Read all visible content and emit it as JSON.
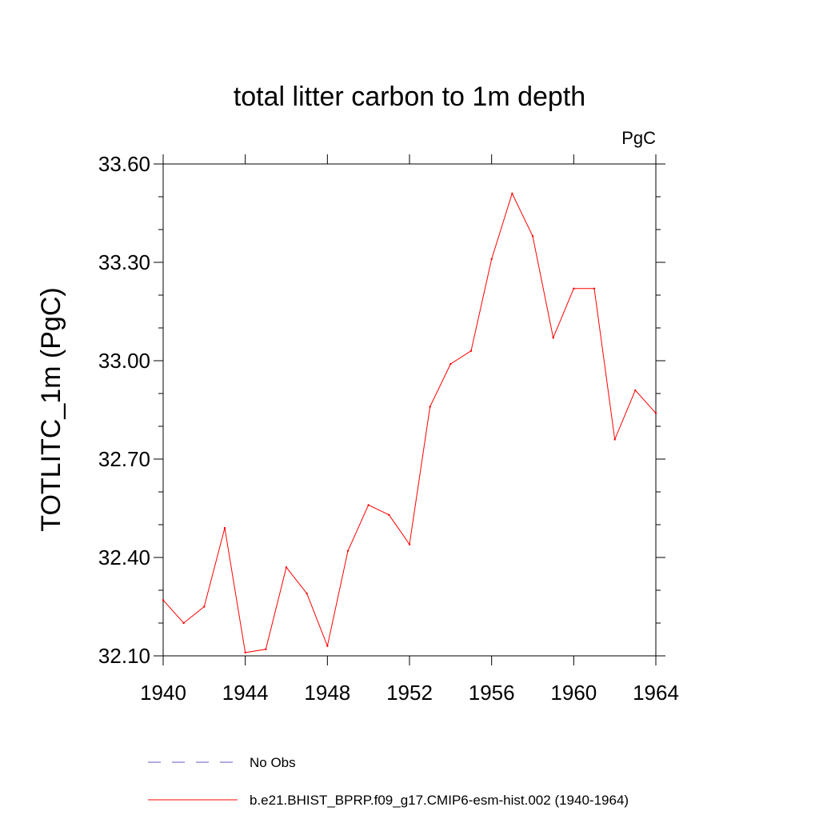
{
  "chart_data": {
    "type": "line",
    "title": "total litter carbon to 1m depth",
    "units": "PgC",
    "ylabel": "TOTLITC_1m  (PgC)",
    "xlabel": "",
    "xlim": [
      1940,
      1964
    ],
    "ylim": [
      32.1,
      33.6
    ],
    "x_ticks": [
      1940,
      1944,
      1948,
      1952,
      1956,
      1960,
      1964
    ],
    "x_tick_labels": [
      "1940",
      "1944",
      "1948",
      "1952",
      "1956",
      "1960",
      "1964"
    ],
    "y_ticks": [
      32.1,
      32.4,
      32.7,
      33.0,
      33.3,
      33.6
    ],
    "y_tick_labels": [
      "32.10",
      "32.40",
      "32.70",
      "33.00",
      "33.30",
      "33.60"
    ],
    "grid": false,
    "legend_position": "bottom",
    "series": [
      {
        "name": "b.e21.BHIST_BPRP.f09_g17.CMIP6-esm-hist.002 (1940-1964)",
        "color": "#ff0000",
        "x": [
          1940,
          1941,
          1942,
          1943,
          1944,
          1945,
          1946,
          1947,
          1948,
          1949,
          1950,
          1951,
          1952,
          1953,
          1954,
          1955,
          1956,
          1957,
          1958,
          1959,
          1960,
          1961,
          1962,
          1963,
          1964
        ],
        "values": [
          32.27,
          32.2,
          32.25,
          32.49,
          32.11,
          32.12,
          32.37,
          32.29,
          32.13,
          32.42,
          32.56,
          32.53,
          32.44,
          32.86,
          32.99,
          33.03,
          33.31,
          33.51,
          33.38,
          33.07,
          33.22,
          33.22,
          32.76,
          32.91,
          32.84
        ]
      }
    ],
    "legend": [
      {
        "label": "No Obs",
        "color": "#6a5acd",
        "style": "dashed"
      },
      {
        "label": "b.e21.BHIST_BPRP.f09_g17.CMIP6-esm-hist.002 (1940-1964)",
        "color": "#ff0000",
        "style": "solid"
      }
    ]
  }
}
